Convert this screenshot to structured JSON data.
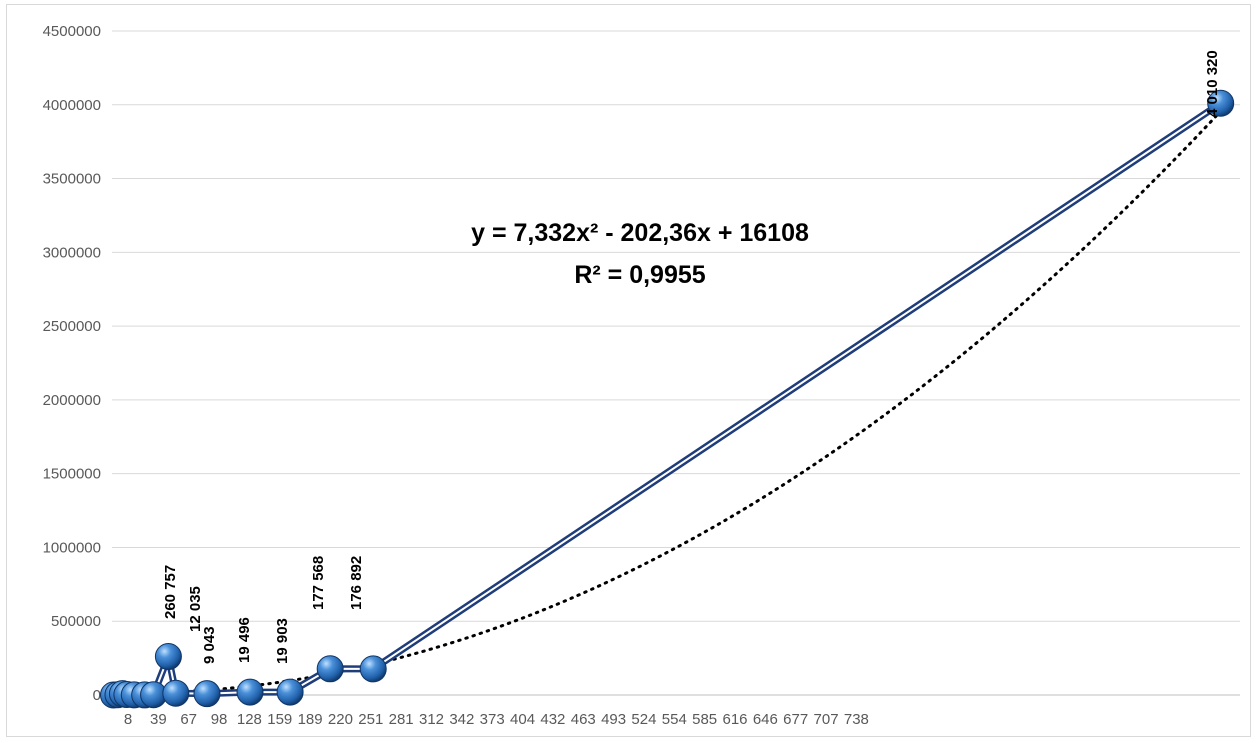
{
  "chart_data": {
    "type": "line",
    "title": "",
    "xlabel": "",
    "ylabel": "",
    "ylim": [
      0,
      4500000
    ],
    "y_ticks": [
      "0",
      "500000",
      "1000000",
      "1500000",
      "2000000",
      "2500000",
      "3000000",
      "3500000",
      "4000000",
      "4500000"
    ],
    "x_categories": [
      "8",
      "39",
      "67",
      "98",
      "128",
      "159",
      "189",
      "220",
      "251",
      "281",
      "312",
      "342",
      "373",
      "404",
      "432",
      "463",
      "493",
      "524",
      "554",
      "585",
      "616",
      "646",
      "677",
      "707",
      "738"
    ],
    "grid": true,
    "series": [
      {
        "points": [
          {
            "x": 1,
            "y": 0
          },
          {
            "x": 4,
            "y": 2000
          },
          {
            "x": 7,
            "y": 9000
          },
          {
            "x": 10,
            "y": 3000
          },
          {
            "x": 15,
            "y": 1000
          },
          {
            "x": 22,
            "y": 500
          },
          {
            "x": 28,
            "y": 2000
          },
          {
            "x": 38,
            "y": 260757,
            "label": "260 757"
          },
          {
            "x": 43,
            "y": 12035,
            "label": "12 035"
          },
          {
            "x": 64,
            "y": 9043,
            "label": "9 043"
          },
          {
            "x": 93,
            "y": 19496,
            "label": "19 496"
          },
          {
            "x": 120,
            "y": 19903,
            "label": "19 903"
          },
          {
            "x": 147,
            "y": 177568,
            "label": "177 568"
          },
          {
            "x": 176,
            "y": 176892,
            "label": "176 892"
          },
          {
            "x": 747,
            "y": 4010320,
            "label": "4 010 320"
          }
        ]
      }
    ],
    "trendline": {
      "type": "polynomial",
      "order": 2,
      "equation": "y = 7,332x² - 202,36x + 16108",
      "r_squared": "R² = 0,9955",
      "coefficients": {
        "a": 7.332,
        "b": -202.36,
        "c": 16108
      }
    },
    "colors": {
      "series_line": "#1f3d7a",
      "marker": "#2e75c9",
      "gridline": "#d9d9d9",
      "trendline": "#000000"
    }
  }
}
